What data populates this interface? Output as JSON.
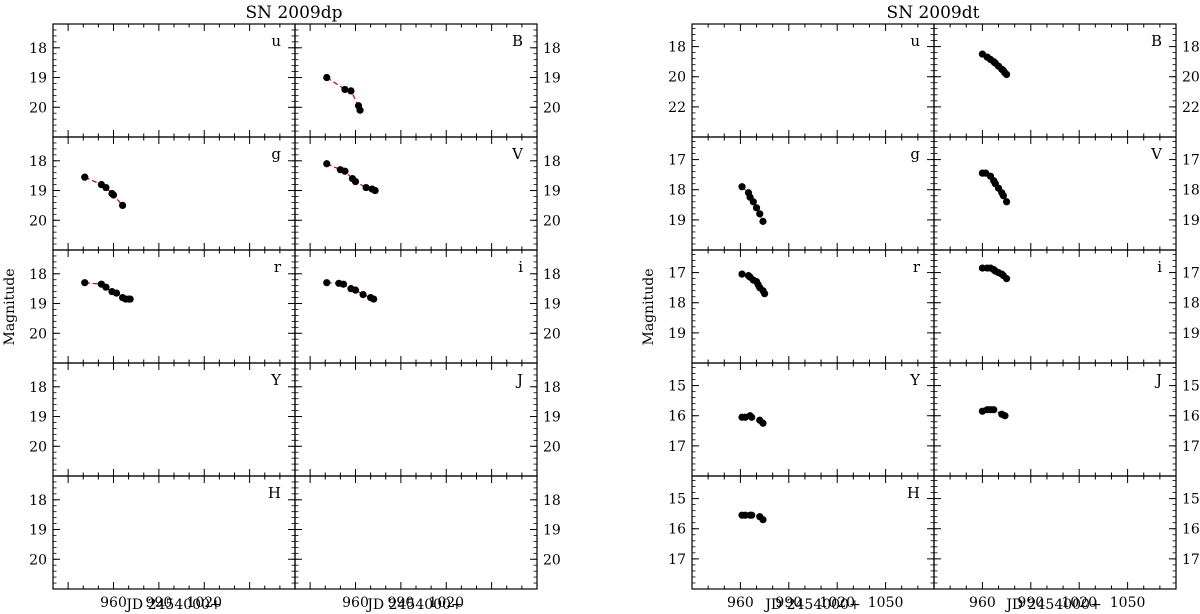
{
  "figure": {
    "ylabel": "Magnitude",
    "xlabel": "JD 2454000+",
    "colors": {
      "points": "#000000",
      "fit": "#cc0000",
      "axes": "#000000"
    }
  },
  "chart_data": [
    {
      "type": "scatter",
      "title": "SN 2009dp",
      "xlabel": "JD 2454000+",
      "ylabel": "Magnitude",
      "xlim": [
        920,
        1080
      ],
      "xticks": [
        "960",
        "990",
        "1020"
      ],
      "grid": false,
      "y_inverted": true,
      "row_ylim": [
        [
          17.2,
          21.0
        ],
        [
          17.2,
          21.0
        ],
        [
          17.2,
          21.0
        ],
        [
          17.2,
          21.0
        ],
        [
          17.2,
          21.0
        ]
      ],
      "row_yticks": [
        [
          "18",
          "19",
          "20"
        ],
        [
          "18",
          "19",
          "20"
        ],
        [
          "18",
          "19",
          "20"
        ],
        [
          "18",
          "19",
          "20"
        ],
        [
          "18",
          "19",
          "20"
        ]
      ],
      "panels": [
        {
          "band": "u",
          "row": 0,
          "col": 0,
          "x": [],
          "y": []
        },
        {
          "band": "B",
          "row": 0,
          "col": 1,
          "x": [
            941,
            953,
            957,
            962,
            963
          ],
          "y": [
            19.0,
            19.4,
            19.45,
            19.95,
            20.1
          ]
        },
        {
          "band": "g",
          "row": 1,
          "col": 0,
          "x": [
            941,
            952,
            955,
            959,
            960,
            966
          ],
          "y": [
            18.55,
            18.8,
            18.9,
            19.1,
            19.15,
            19.5
          ]
        },
        {
          "band": "V",
          "row": 1,
          "col": 1,
          "x": [
            941,
            950,
            953,
            958,
            960,
            967,
            971,
            973
          ],
          "y": [
            18.1,
            18.3,
            18.35,
            18.6,
            18.7,
            18.9,
            18.95,
            19.0
          ]
        },
        {
          "band": "r",
          "row": 2,
          "col": 0,
          "x": [
            941,
            952,
            955,
            959,
            962,
            966,
            968,
            970,
            971
          ],
          "y": [
            18.3,
            18.35,
            18.45,
            18.6,
            18.65,
            18.8,
            18.85,
            18.85,
            18.85
          ]
        },
        {
          "band": "i",
          "row": 2,
          "col": 1,
          "x": [
            941,
            949,
            952,
            957,
            960,
            965,
            970,
            972
          ],
          "y": [
            18.3,
            18.32,
            18.35,
            18.5,
            18.55,
            18.7,
            18.8,
            18.85
          ]
        },
        {
          "band": "Y",
          "row": 3,
          "col": 0,
          "x": [],
          "y": []
        },
        {
          "band": "J",
          "row": 3,
          "col": 1,
          "x": [],
          "y": []
        },
        {
          "band": "H",
          "row": 4,
          "col": 0,
          "x": [],
          "y": []
        },
        {
          "band": "",
          "row": 4,
          "col": 1,
          "x": [],
          "y": []
        }
      ]
    },
    {
      "type": "scatter",
      "title": "SN 2009dt",
      "xlabel": "JD 2454000+",
      "ylabel": "Magnitude",
      "xlim": [
        930,
        1080
      ],
      "xticks": [
        "960",
        "990",
        "1020",
        "1050"
      ],
      "grid": false,
      "y_inverted": true,
      "row_ylim": [
        [
          16.5,
          24.0
        ],
        [
          16.25,
          20.0
        ],
        [
          16.25,
          20.0
        ],
        [
          14.25,
          18.0
        ],
        [
          14.25,
          18.0
        ]
      ],
      "row_yticks": [
        [
          "18",
          "20",
          "22"
        ],
        [
          "17",
          "18",
          "19"
        ],
        [
          "17",
          "18",
          "19"
        ],
        [
          "15",
          "16",
          "17"
        ],
        [
          "15",
          "16",
          "17"
        ]
      ],
      "panels": [
        {
          "band": "u",
          "row": 0,
          "col": 0,
          "x": [],
          "y": []
        },
        {
          "band": "B",
          "row": 0,
          "col": 1,
          "x": [
            960,
            963,
            965,
            967,
            968,
            970,
            972,
            973,
            974,
            975
          ],
          "y": [
            18.5,
            18.7,
            18.85,
            19.0,
            19.1,
            19.3,
            19.5,
            19.6,
            19.75,
            19.85
          ]
        },
        {
          "band": "g",
          "row": 1,
          "col": 0,
          "x": [
            961,
            965,
            966,
            968,
            970,
            972,
            974
          ],
          "y": [
            17.9,
            18.1,
            18.25,
            18.4,
            18.6,
            18.8,
            19.05
          ]
        },
        {
          "band": "V",
          "row": 1,
          "col": 1,
          "x": [
            960,
            962,
            965,
            967,
            968,
            970,
            972,
            973,
            975
          ],
          "y": [
            17.45,
            17.45,
            17.55,
            17.7,
            17.8,
            17.95,
            18.1,
            18.2,
            18.4
          ]
        },
        {
          "band": "r",
          "row": 2,
          "col": 0,
          "x": [
            961,
            965,
            966,
            968,
            970,
            971,
            972,
            974,
            975
          ],
          "y": [
            17.05,
            17.1,
            17.15,
            17.25,
            17.3,
            17.4,
            17.5,
            17.6,
            17.7
          ]
        },
        {
          "band": "i",
          "row": 2,
          "col": 1,
          "x": [
            960,
            963,
            965,
            967,
            968,
            970,
            972,
            973,
            975
          ],
          "y": [
            16.85,
            16.85,
            16.85,
            16.9,
            16.95,
            17.0,
            17.05,
            17.1,
            17.2
          ]
        },
        {
          "band": "Y",
          "row": 3,
          "col": 0,
          "x": [
            961,
            963,
            966,
            967,
            972,
            974
          ],
          "y": [
            16.05,
            16.05,
            16.0,
            16.05,
            16.15,
            16.25
          ]
        },
        {
          "band": "J",
          "row": 3,
          "col": 1,
          "x": [
            960,
            963,
            965,
            967,
            972,
            974
          ],
          "y": [
            15.85,
            15.8,
            15.8,
            15.8,
            15.95,
            16.0
          ]
        },
        {
          "band": "H",
          "row": 4,
          "col": 0,
          "x": [
            961,
            963,
            966,
            967,
            972,
            974
          ],
          "y": [
            15.55,
            15.55,
            15.55,
            15.55,
            15.6,
            15.7
          ]
        },
        {
          "band": "",
          "row": 4,
          "col": 1,
          "x": [],
          "y": []
        }
      ]
    }
  ]
}
